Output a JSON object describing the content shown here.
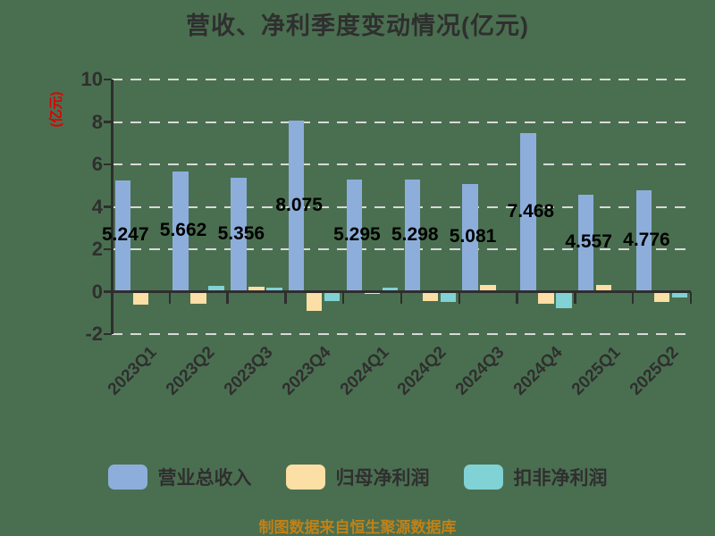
{
  "title": "营收、净利季度变动情况(亿元)",
  "y_axis_label": "(亿元)",
  "footer": "制图数据来自恒生聚源数据库",
  "colors": {
    "background": "#4A6F50",
    "axis": "#2E2E2E",
    "gridline": "#D9D9D9",
    "title_text": "#2F2F2F",
    "y_axis_label_text": "#E00000",
    "footer_text": "#C08118",
    "revenue_bar": "#8DAEDB",
    "net_profit_bar": "#FBDFA4",
    "deducted_net_profit_bar": "#80D2D4"
  },
  "chart_data": {
    "type": "bar",
    "title": "营收、净利季度变动情况(亿元)",
    "ylabel": "(亿元)",
    "categories": [
      "2023Q1",
      "2023Q2",
      "2023Q3",
      "2023Q4",
      "2024Q1",
      "2024Q2",
      "2024Q3",
      "2024Q4",
      "2025Q1",
      "2025Q2"
    ],
    "series": [
      {
        "name": "营业总收入",
        "key": "revenue",
        "color": "#8DAEDB",
        "values": [
          5.247,
          5.662,
          5.356,
          8.075,
          5.295,
          5.298,
          5.081,
          7.468,
          4.557,
          4.776
        ],
        "data_labels": [
          "5.247",
          "5.662",
          "5.356",
          "8.075",
          "5.295",
          "5.298",
          "5.081",
          "7.468",
          "4.557",
          "4.776"
        ]
      },
      {
        "name": "归母净利润",
        "key": "net-profit",
        "color": "#FBDFA4",
        "values": [
          -0.63,
          -0.58,
          0.22,
          -0.9,
          -0.12,
          -0.45,
          0.3,
          -0.58,
          0.32,
          -0.49
        ]
      },
      {
        "name": "扣非净利润",
        "key": "deducted-net-profit",
        "color": "#80D2D4",
        "values": [
          0,
          0.29,
          0.17,
          -0.44,
          0.19,
          -0.5,
          -0.03,
          -0.76,
          -0.05,
          -0.26
        ]
      }
    ],
    "ylim": [
      -2,
      10
    ],
    "yticks": [
      10,
      8,
      6,
      4,
      2,
      0,
      -2
    ],
    "grid": true,
    "grid_style": "dashed",
    "legend_position": "bottom"
  }
}
